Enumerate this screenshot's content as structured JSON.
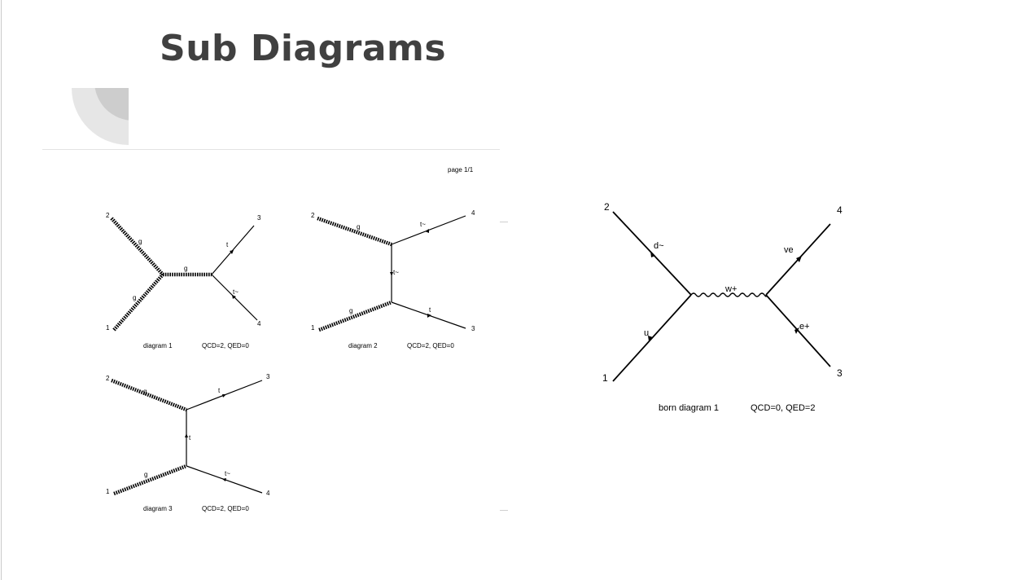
{
  "slide": {
    "title": "Sub Diagrams"
  },
  "page_label": "page 1/1",
  "diagrams": [
    {
      "caption": "diagram 1",
      "couplings": "QCD=2, QED=0",
      "externals": [
        "1",
        "2",
        "3",
        "4"
      ],
      "particles": {
        "in1": "g",
        "in2": "g",
        "prop": "g",
        "out3": "t",
        "out4": "t~"
      }
    },
    {
      "caption": "diagram 2",
      "couplings": "QCD=2, QED=0",
      "externals": [
        "1",
        "2",
        "3",
        "4"
      ],
      "particles": {
        "in1": "g",
        "in2": "g",
        "prop": "t~",
        "out3": "t",
        "out4": "t~"
      }
    },
    {
      "caption": "diagram 3",
      "couplings": "QCD=2, QED=0",
      "externals": [
        "1",
        "2",
        "3",
        "4"
      ],
      "particles": {
        "in1": "g",
        "in2": "g",
        "prop": "t",
        "out3": "t",
        "out4": "t~"
      }
    }
  ],
  "born_diagram": {
    "caption": "born diagram 1",
    "couplings": "QCD=0, QED=2",
    "externals": [
      "1",
      "2",
      "3",
      "4"
    ],
    "particles": {
      "in1": "u",
      "in2": "d~",
      "prop": "w+",
      "out4": "ve",
      "out3": "e+"
    }
  }
}
